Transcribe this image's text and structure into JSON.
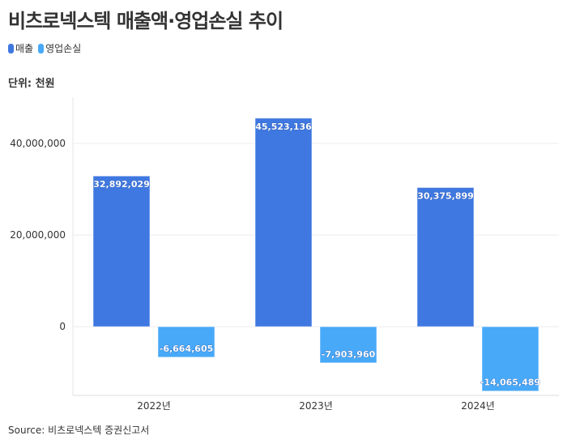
{
  "title": "비츠로넥스텍 매출액·영업손실 추이",
  "unit": "단위: 천원",
  "source": "Source: 비츠로넥스텍 증권신고서",
  "chart_data": {
    "type": "bar",
    "categories": [
      "2022년",
      "2023년",
      "2024년"
    ],
    "series": [
      {
        "name": "매출",
        "color": "#3f78e0",
        "values": [
          32892029,
          45523136,
          30375899
        ],
        "labels": [
          "32,892,029",
          "45,523,136",
          "30,375,899"
        ]
      },
      {
        "name": "영업손실",
        "color": "#48a9f8",
        "values": [
          -6664605,
          -7903960,
          -14065489
        ],
        "labels": [
          "-6,664,605",
          "-7,903,960",
          "-14,065,489"
        ]
      }
    ],
    "yticks": [
      0,
      20000000,
      40000000
    ],
    "ytick_labels": [
      "0",
      "20,000,000",
      "40,000,000"
    ],
    "ylim": [
      -15000000,
      50000000
    ],
    "grid": true,
    "legend": "top-left"
  }
}
